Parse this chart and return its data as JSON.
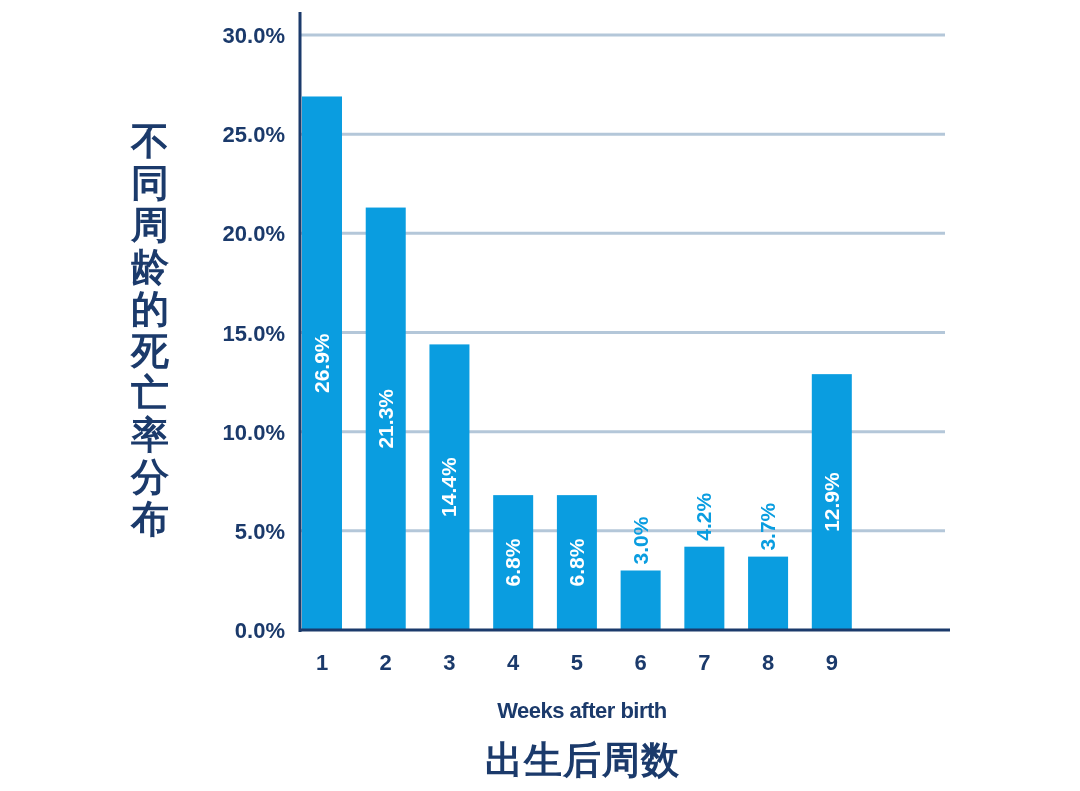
{
  "chart_data": {
    "type": "bar",
    "ylabel": "不同周龄的死亡率分布",
    "xlabel": "Weeks after birth\n出生后周数",
    "categories": [
      "1",
      "2",
      "3",
      "4",
      "5",
      "6",
      "7",
      "8",
      "9"
    ],
    "values": [
      26.9,
      21.3,
      14.4,
      6.8,
      6.8,
      3.0,
      4.2,
      3.7,
      12.9
    ],
    "value_labels": [
      "26.9%",
      "21.3%",
      "14.4%",
      "6.8%",
      "6.8%",
      "3.0%",
      "4.2%",
      "3.7%",
      "12.9%"
    ],
    "color": "#0a9de0",
    "ylim": [
      0,
      30
    ],
    "yticks": [
      {
        "value": 0,
        "label": "0.0%"
      },
      {
        "value": 5,
        "label": "5.0%"
      },
      {
        "value": 10,
        "label": "10.0%"
      },
      {
        "value": 15,
        "label": "15.0%"
      },
      {
        "value": 20,
        "label": "20.0%"
      },
      {
        "value": 25,
        "label": "25.0%"
      },
      {
        "value": 30,
        "label": "30.0%"
      }
    ],
    "grid": "y"
  }
}
